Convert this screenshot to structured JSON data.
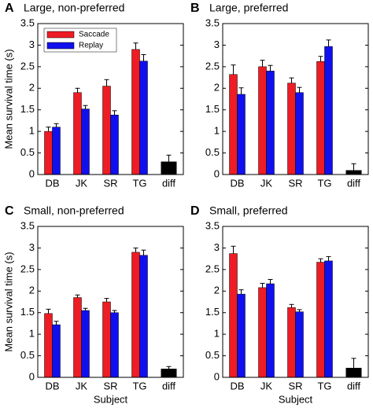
{
  "chart_data": [
    {
      "type": "bar",
      "panel": "A",
      "title": "Large, non-preferred",
      "ylabel": "Mean survival time (s)",
      "categories": [
        "DB",
        "JK",
        "SR",
        "TG",
        "diff"
      ],
      "series": [
        {
          "name": "Saccade",
          "color": "#ee1c24",
          "values": [
            1.0,
            1.9,
            2.05,
            2.9,
            null
          ],
          "errors": [
            0.1,
            0.1,
            0.15,
            0.15,
            null
          ]
        },
        {
          "name": "Replay",
          "color": "#1010ee",
          "values": [
            1.1,
            1.52,
            1.38,
            2.63,
            null
          ],
          "errors": [
            0.08,
            0.08,
            0.1,
            0.15,
            null
          ]
        }
      ],
      "diff": {
        "value": 0.3,
        "error": 0.15,
        "color": "#000000"
      },
      "ylim": [
        0,
        3.5
      ],
      "yticks": [
        0,
        0.5,
        1,
        1.5,
        2,
        2.5,
        3,
        3.5
      ],
      "legend": "upper left"
    },
    {
      "type": "bar",
      "panel": "B",
      "title": "Large, preferred",
      "categories": [
        "DB",
        "JK",
        "SR",
        "TG",
        "diff"
      ],
      "series": [
        {
          "color": "#ee1c24",
          "values": [
            2.32,
            2.5,
            2.12,
            2.62,
            null
          ],
          "errors": [
            0.22,
            0.15,
            0.12,
            0.12,
            null
          ]
        },
        {
          "color": "#1010ee",
          "values": [
            1.86,
            2.4,
            1.9,
            2.97,
            null
          ],
          "errors": [
            0.15,
            0.13,
            0.12,
            0.15,
            null
          ]
        }
      ],
      "diff": {
        "value": 0.1,
        "error": 0.15,
        "color": "#000000"
      },
      "ylim": [
        0,
        3.5
      ],
      "yticks": [
        0,
        0.5,
        1,
        1.5,
        2,
        2.5,
        3,
        3.5
      ]
    },
    {
      "type": "bar",
      "panel": "C",
      "title": "Small, non-preferred",
      "ylabel": "Mean survival time (s)",
      "xlabel": "Subject",
      "categories": [
        "DB",
        "JK",
        "SR",
        "TG",
        "diff"
      ],
      "series": [
        {
          "color": "#ee1c24",
          "values": [
            1.48,
            1.85,
            1.75,
            2.9,
            null
          ],
          "errors": [
            0.1,
            0.06,
            0.08,
            0.1,
            null
          ]
        },
        {
          "color": "#1010ee",
          "values": [
            1.22,
            1.55,
            1.5,
            2.83,
            null
          ],
          "errors": [
            0.08,
            0.05,
            0.05,
            0.12,
            null
          ]
        }
      ],
      "diff": {
        "value": 0.2,
        "error": 0.05,
        "color": "#000000"
      },
      "ylim": [
        0,
        3.5
      ],
      "yticks": [
        0,
        0.5,
        1,
        1.5,
        2,
        2.5,
        3,
        3.5
      ]
    },
    {
      "type": "bar",
      "panel": "D",
      "title": "Small, preferred",
      "xlabel": "Subject",
      "categories": [
        "DB",
        "JK",
        "SR",
        "TG",
        "diff"
      ],
      "series": [
        {
          "color": "#ee1c24",
          "values": [
            2.87,
            2.08,
            1.62,
            2.67,
            null
          ],
          "errors": [
            0.17,
            0.1,
            0.07,
            0.08,
            null
          ]
        },
        {
          "color": "#1010ee",
          "values": [
            1.93,
            2.17,
            1.52,
            2.7,
            null
          ],
          "errors": [
            0.1,
            0.1,
            0.05,
            0.1,
            null
          ]
        }
      ],
      "diff": {
        "value": 0.22,
        "error": 0.22,
        "color": "#000000"
      },
      "ylim": [
        0,
        3.5
      ],
      "yticks": [
        0,
        0.5,
        1,
        1.5,
        2,
        2.5,
        3,
        3.5
      ]
    }
  ]
}
